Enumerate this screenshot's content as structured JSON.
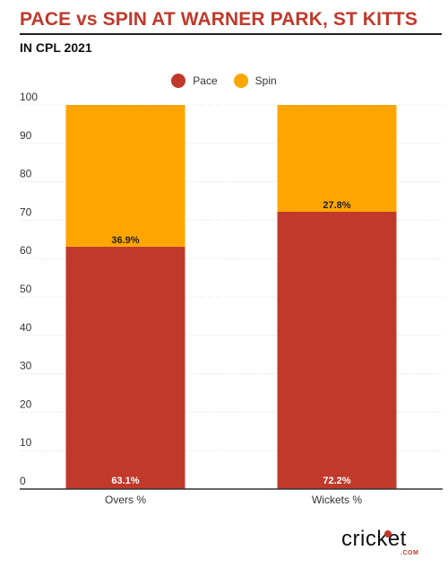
{
  "header": {
    "title": "PACE vs SPIN AT WARNER PARK, ST KITTS",
    "subtitle": "IN CPL 2021"
  },
  "brand": {
    "logo_text": "cricket",
    "logo_suffix": ".COM"
  },
  "colors": {
    "pace": "#c0392b",
    "spin": "#ffa500",
    "title": "#c0392b"
  },
  "chart_data": {
    "type": "bar",
    "stacked": true,
    "categories": [
      "Overs %",
      "Wickets %"
    ],
    "series": [
      {
        "name": "Pace",
        "values": [
          63.1,
          72.2
        ],
        "labels": [
          "63.1%",
          "72.2%"
        ],
        "color": "#c0392b"
      },
      {
        "name": "Spin",
        "values": [
          36.9,
          27.8
        ],
        "labels": [
          "36.9%",
          "27.8%"
        ],
        "color": "#ffa500"
      }
    ],
    "yticks": [
      0,
      10,
      20,
      30,
      40,
      50,
      60,
      70,
      80,
      90,
      100
    ],
    "ylim": [
      0,
      100
    ],
    "grid": true,
    "legend_position": "top-center"
  }
}
